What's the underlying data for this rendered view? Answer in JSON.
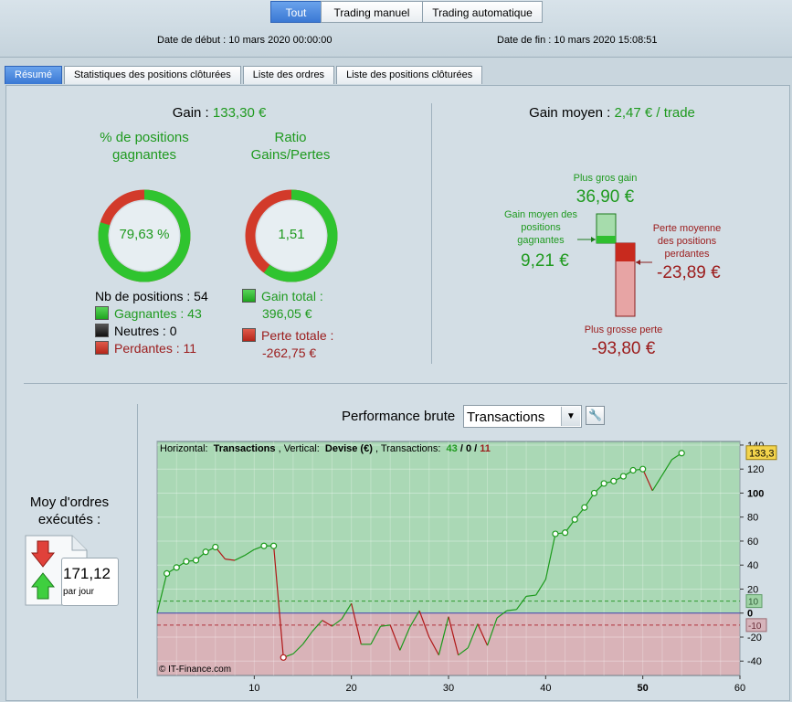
{
  "mode_buttons": [
    "Tout",
    "Trading manuel",
    "Trading automatique"
  ],
  "dates": {
    "start_label": "Date de début :",
    "start_value": "10 mars 2020 00:00:00",
    "end_label": "Date de fin :",
    "end_value": "10 mars 2020 15:08:51"
  },
  "tabs": [
    "Résumé",
    "Statistiques des positions clôturées",
    "Liste des ordres",
    "Liste des positions clôturées"
  ],
  "summary": {
    "gain_label": "Gain :",
    "gain_value": "133,30 €",
    "pct_title": "% de positions gagnantes",
    "pct_value": "79,63 %",
    "pct_fraction": 0.7963,
    "ratio_title": "Ratio Gains/Pertes",
    "ratio_value": "1,51",
    "ratio_gain_fraction": 0.601,
    "nb_positions": "Nb de positions : 54",
    "winners": "Gagnantes : 43",
    "neutral": "Neutres : 0",
    "losers": "Perdantes : 11",
    "total_gain_label": "Gain total :",
    "total_gain_value": "396,05 €",
    "total_loss_label": "Perte totale :",
    "total_loss_value": "-262,75 €",
    "colors": {
      "gain": "#1f9a1f",
      "loss": "#9b1b1b",
      "green_ring": "#2fc42f",
      "red_ring": "#d23a2a"
    }
  },
  "average": {
    "title_label": "Gain moyen :",
    "title_value": "2,47 € / trade",
    "max_gain_label": "Plus gros gain",
    "max_gain_value": "36,90 €",
    "avg_win_label_1": "Gain moyen des",
    "avg_win_label_2": "positions",
    "avg_win_label_3": "gagnantes",
    "avg_win_value": "9,21 €",
    "avg_loss_label_1": "Perte moyenne",
    "avg_loss_label_2": "des positions",
    "avg_loss_label_3": "perdantes",
    "avg_loss_value": "-23,89 €",
    "max_loss_label": "Plus grosse perte",
    "max_loss_value": "-93,80 €"
  },
  "orders": {
    "title_1": "Moy d'ordres",
    "title_2": "exécutés :",
    "value": "171,12",
    "unit": "par jour"
  },
  "performance": {
    "title": "Performance brute",
    "select_value": "Transactions"
  },
  "chart_data": {
    "type": "line",
    "header": {
      "h_label": "Horizontal:",
      "h_value": "Transactions",
      "v_label": "Vertical:",
      "v_value": "Devise (€)",
      "t_label": "Transactions:",
      "t_win": "43",
      "t_neutral": "0",
      "t_loss": "11"
    },
    "watermark": "© IT-Finance.com",
    "xlim": [
      0,
      60
    ],
    "ylim": [
      -52,
      143
    ],
    "x_ticks": [
      "10",
      "20",
      "30",
      "40",
      "50",
      "60"
    ],
    "y_ticks": [
      "140",
      "120",
      "100",
      "80",
      "60",
      "40",
      "20",
      "0",
      "-20",
      "-40"
    ],
    "last_value": "133,3",
    "upper_ref_label": "10",
    "lower_ref_label": "-10",
    "upper_ref": 10,
    "lower_ref": -10,
    "x": [
      0,
      1,
      2,
      3,
      4,
      5,
      6,
      7,
      8,
      9,
      10,
      11,
      12,
      13,
      14,
      15,
      16,
      17,
      18,
      19,
      20,
      21,
      22,
      23,
      24,
      25,
      26,
      27,
      28,
      29,
      30,
      31,
      32,
      33,
      34,
      35,
      36,
      37,
      38,
      39,
      40,
      41,
      42,
      43,
      44,
      45,
      46,
      47,
      48,
      49,
      50,
      51,
      52,
      53,
      54
    ],
    "y": [
      0,
      33,
      38,
      43,
      44,
      51,
      55,
      45,
      44,
      48,
      53,
      56,
      56,
      -37,
      -34,
      -26,
      -15,
      -6,
      -11,
      -5,
      8,
      -26,
      -26,
      -11,
      -10,
      -31,
      -12,
      2,
      -20,
      -35,
      -3,
      -35,
      -29,
      -9,
      -27,
      -4,
      2,
      3,
      14,
      15,
      28,
      66,
      67,
      78,
      88,
      100,
      108,
      110,
      114,
      119,
      120,
      102,
      115,
      128,
      133.3
    ],
    "markers": [
      1,
      2,
      3,
      4,
      5,
      6,
      11,
      12,
      13,
      41,
      42,
      43,
      44,
      45,
      46,
      47,
      48,
      49,
      50,
      54
    ],
    "colors": {
      "up": "#1b9a1b",
      "down": "#b01818",
      "upper_zone": "#aad8b5",
      "lower_zone": "#d9b3b8",
      "zero_line": "#3a3aa8"
    }
  }
}
